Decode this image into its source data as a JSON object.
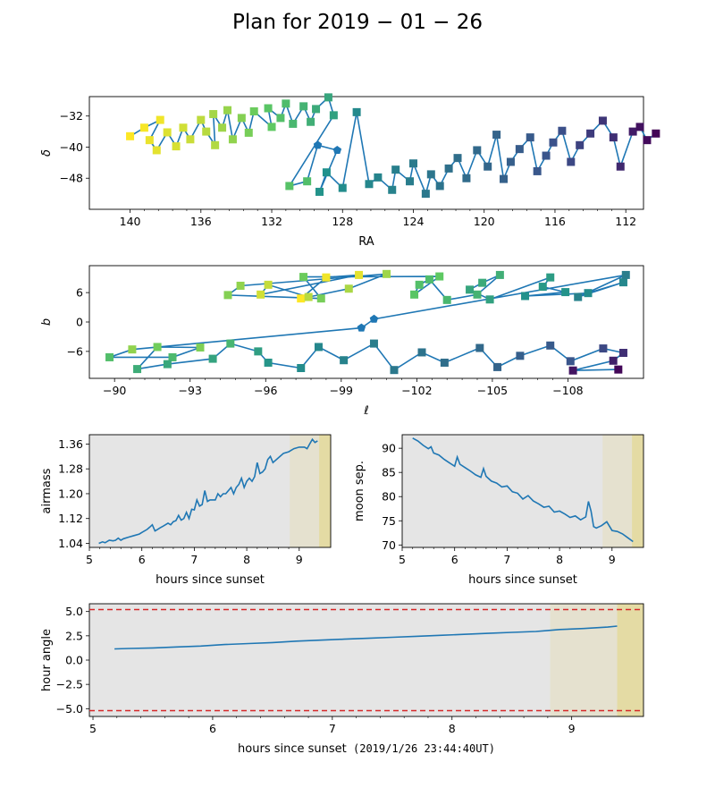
{
  "page": {
    "title": "Plan for 2019 − 01 − 26"
  },
  "colors": {
    "line": "#1f77b4",
    "limit": "#d62728",
    "night_bg": "#e5e5e5",
    "twilight_bg": "#e5e1cf",
    "dawn_bg": "#e4dba4",
    "viridis": [
      "#440154",
      "#3b528b",
      "#21918c",
      "#5ec962",
      "#fde725"
    ]
  },
  "chart_data": [
    {
      "id": "sky",
      "type": "scatter",
      "xlabel": "RA",
      "ylabel": "δ",
      "xlim": [
        142.3,
        111.0
      ],
      "ylim": [
        -56,
        -27
      ],
      "xticks": [
        140,
        136,
        132,
        128,
        124,
        120,
        116,
        112
      ],
      "yticks": [
        -48,
        -40,
        -32
      ],
      "grid": false,
      "points": [
        [
          140.0,
          -37.2,
          "s",
          1.0
        ],
        [
          139.2,
          -35.0,
          "s",
          0.99
        ],
        [
          138.3,
          -33.0,
          "s",
          0.98
        ],
        [
          138.9,
          -38.2,
          "s",
          0.97
        ],
        [
          138.5,
          -40.8,
          "s",
          0.96
        ],
        [
          137.9,
          -36.2,
          "s",
          0.95
        ],
        [
          137.4,
          -39.8,
          "s",
          0.94
        ],
        [
          137.0,
          -35.0,
          "s",
          0.93
        ],
        [
          136.6,
          -38.0,
          "s",
          0.92
        ],
        [
          136.0,
          -33.0,
          "s",
          0.9
        ],
        [
          135.7,
          -36.0,
          "s",
          0.89
        ],
        [
          135.2,
          -39.5,
          "s",
          0.88
        ],
        [
          135.3,
          -31.5,
          "s",
          0.86
        ],
        [
          134.8,
          -35.0,
          "s",
          0.85
        ],
        [
          134.5,
          -30.5,
          "s",
          0.84
        ],
        [
          134.2,
          -38.0,
          "s",
          0.83
        ],
        [
          133.7,
          -32.5,
          "s",
          0.81
        ],
        [
          133.3,
          -36.3,
          "s",
          0.79
        ],
        [
          133.0,
          -30.8,
          "s",
          0.77
        ],
        [
          132.0,
          -34.8,
          "s",
          0.75
        ],
        [
          132.2,
          -30.0,
          "s",
          0.73
        ],
        [
          131.5,
          -32.5,
          "s",
          0.71
        ],
        [
          131.2,
          -28.8,
          "s",
          0.69
        ],
        [
          130.8,
          -34.0,
          "s",
          0.67
        ],
        [
          130.2,
          -29.5,
          "s",
          0.65
        ],
        [
          129.8,
          -33.5,
          "s",
          0.63
        ],
        [
          129.5,
          -30.2,
          "s",
          0.61
        ],
        [
          128.8,
          -27.2,
          "s",
          0.59
        ],
        [
          128.5,
          -31.8,
          "s",
          0.57
        ],
        [
          131.0,
          -50.0,
          "s",
          0.72
        ],
        [
          130.0,
          -48.8,
          "s",
          0.7
        ],
        [
          129.4,
          -39.5,
          "p",
          0.55
        ],
        [
          128.3,
          -40.8,
          "p",
          0.53
        ],
        [
          129.3,
          -51.5,
          "s",
          0.51
        ],
        [
          128.9,
          -46.5,
          "s",
          0.5
        ],
        [
          128.0,
          -50.5,
          "s",
          0.48
        ],
        [
          127.2,
          -31.0,
          "s",
          0.47
        ],
        [
          126.5,
          -49.5,
          "s",
          0.46
        ],
        [
          126.0,
          -47.8,
          "s",
          0.45
        ],
        [
          125.2,
          -51.0,
          "s",
          0.44
        ],
        [
          125.0,
          -45.8,
          "s",
          0.43
        ],
        [
          124.2,
          -48.8,
          "s",
          0.42
        ],
        [
          124.0,
          -44.2,
          "s",
          0.41
        ],
        [
          123.3,
          -52.0,
          "s",
          0.4
        ],
        [
          123.0,
          -47.0,
          "s",
          0.39
        ],
        [
          122.5,
          -50.0,
          "s",
          0.38
        ],
        [
          122.0,
          -45.5,
          "s",
          0.37
        ],
        [
          121.5,
          -42.8,
          "s",
          0.36
        ],
        [
          121.0,
          -48.0,
          "s",
          0.35
        ],
        [
          120.4,
          -40.8,
          "s",
          0.34
        ],
        [
          119.8,
          -45.0,
          "s",
          0.33
        ],
        [
          119.3,
          -36.8,
          "s",
          0.32
        ],
        [
          118.9,
          -48.2,
          "s",
          0.31
        ],
        [
          118.5,
          -43.8,
          "s",
          0.3
        ],
        [
          118.0,
          -40.5,
          "s",
          0.29
        ],
        [
          117.4,
          -37.5,
          "s",
          0.28
        ],
        [
          117.0,
          -46.2,
          "s",
          0.27
        ],
        [
          116.5,
          -42.2,
          "s",
          0.26
        ],
        [
          116.1,
          -38.8,
          "s",
          0.25
        ],
        [
          115.6,
          -35.8,
          "s",
          0.24
        ],
        [
          115.1,
          -43.8,
          "s",
          0.22
        ],
        [
          114.6,
          -39.5,
          "s",
          0.2
        ],
        [
          114.0,
          -36.5,
          "s",
          0.18
        ],
        [
          113.3,
          -33.2,
          "s",
          0.16
        ],
        [
          112.7,
          -37.5,
          "s",
          0.14
        ],
        [
          112.3,
          -45.0,
          "s",
          0.12
        ],
        [
          111.6,
          -36.0,
          "s",
          0.08
        ],
        [
          111.2,
          -34.8,
          "s",
          0.05
        ],
        [
          110.8,
          -38.2,
          "s",
          0.03
        ],
        [
          110.3,
          -36.5,
          "s",
          0.01
        ]
      ]
    },
    {
      "id": "gal",
      "type": "scatter",
      "xlabel": "ℓ",
      "ylabel": "b",
      "xlim": [
        -89.0,
        -111.0
      ],
      "ylim": [
        -11.5,
        11.5
      ],
      "xticks": [
        -90,
        -93,
        -96,
        -99,
        -102,
        -105,
        -108
      ],
      "yticks": [
        -6,
        0,
        6
      ],
      "grid": false,
      "points": [
        [
          -97.4,
          4.8,
          "s",
          1.0
        ],
        [
          -98.4,
          9.1,
          "s",
          0.98
        ],
        [
          -99.7,
          9.6,
          "s",
          0.96
        ],
        [
          -95.8,
          5.6,
          "s",
          0.93
        ],
        [
          -96.1,
          7.6,
          "s",
          0.91
        ],
        [
          -97.7,
          5.1,
          "s",
          0.89
        ],
        [
          -99.3,
          6.8,
          "s",
          0.87
        ],
        [
          -100.8,
          9.8,
          "s",
          0.85
        ],
        [
          -95.0,
          7.4,
          "s",
          0.83
        ],
        [
          -94.5,
          5.5,
          "s",
          0.81
        ],
        [
          -98.2,
          4.8,
          "s",
          0.79
        ],
        [
          -97.5,
          9.2,
          "s",
          0.77
        ],
        [
          -102.9,
          9.3,
          "s",
          0.75
        ],
        [
          -101.9,
          5.6,
          "s",
          0.73
        ],
        [
          -102.1,
          7.6,
          "s",
          0.71
        ],
        [
          -102.5,
          8.7,
          "s",
          0.69
        ],
        [
          -103.2,
          4.5,
          "s",
          0.67
        ],
        [
          -104.4,
          5.6,
          "s",
          0.65
        ],
        [
          -105.3,
          9.6,
          "s",
          0.63
        ],
        [
          -104.6,
          8.0,
          "s",
          0.61
        ],
        [
          -104.1,
          6.6,
          "s",
          0.59
        ],
        [
          -104.9,
          4.6,
          "s",
          0.57
        ],
        [
          -107.3,
          9.1,
          "s",
          0.55
        ],
        [
          -107.0,
          7.2,
          "s",
          0.53
        ],
        [
          -107.9,
          6.1,
          "s",
          0.51
        ],
        [
          -106.3,
          5.3,
          "s",
          0.5
        ],
        [
          -108.8,
          5.9,
          "s",
          0.48
        ],
        [
          -110.2,
          8.1,
          "s",
          0.46
        ],
        [
          -108.4,
          5.1,
          "s",
          0.44
        ],
        [
          -110.3,
          9.6,
          "s",
          0.42
        ],
        [
          -100.3,
          0.6,
          "p",
          0.55
        ],
        [
          -99.8,
          -1.2,
          "p",
          0.54
        ],
        [
          -90.7,
          -5.6,
          "s",
          0.83
        ],
        [
          -89.8,
          -7.2,
          "s",
          0.7
        ],
        [
          -92.3,
          -7.2,
          "s",
          0.68
        ],
        [
          -93.4,
          -5.2,
          "s",
          0.8
        ],
        [
          -91.7,
          -5.1,
          "s",
          0.78
        ],
        [
          -90.9,
          -9.6,
          "s",
          0.62
        ],
        [
          -92.1,
          -8.6,
          "s",
          0.6
        ],
        [
          -93.9,
          -7.5,
          "s",
          0.58
        ],
        [
          -94.6,
          -4.4,
          "s",
          0.66
        ],
        [
          -95.7,
          -6.0,
          "s",
          0.56
        ],
        [
          -96.1,
          -8.3,
          "s",
          0.52
        ],
        [
          -97.4,
          -9.4,
          "s",
          0.48
        ],
        [
          -98.1,
          -5.1,
          "s",
          0.46
        ],
        [
          -99.1,
          -7.8,
          "s",
          0.44
        ],
        [
          -100.3,
          -4.4,
          "s",
          0.42
        ],
        [
          -101.1,
          -9.8,
          "s",
          0.4
        ],
        [
          -102.2,
          -6.2,
          "s",
          0.38
        ],
        [
          -103.1,
          -8.3,
          "s",
          0.36
        ],
        [
          -104.5,
          -5.3,
          "s",
          0.34
        ],
        [
          -105.2,
          -9.2,
          "s",
          0.32
        ],
        [
          -106.1,
          -6.9,
          "s",
          0.3
        ],
        [
          -107.3,
          -4.8,
          "s",
          0.28
        ],
        [
          -108.1,
          -8.0,
          "s",
          0.26
        ],
        [
          -109.4,
          -5.4,
          "s",
          0.22
        ],
        [
          -110.2,
          -6.3,
          "s",
          0.14
        ],
        [
          -109.8,
          -7.9,
          "s",
          0.1
        ],
        [
          -108.2,
          -9.9,
          "s",
          0.06
        ],
        [
          -110.0,
          -9.7,
          "s",
          0.02
        ]
      ]
    },
    {
      "id": "airmass",
      "type": "line",
      "xlabel": "hours since sunset",
      "ylabel": "airmass",
      "xlim": [
        5.0,
        9.6
      ],
      "ylim": [
        1.027,
        1.39
      ],
      "xticks": [
        5,
        6,
        7,
        8,
        9
      ],
      "yticks": [
        1.04,
        1.12,
        1.2,
        1.28,
        1.36
      ],
      "x": [
        5.18,
        5.25,
        5.3,
        5.38,
        5.45,
        5.5,
        5.55,
        5.6,
        5.65,
        5.75,
        5.85,
        5.95,
        6.0,
        6.1,
        6.15,
        6.2,
        6.25,
        6.3,
        6.35,
        6.4,
        6.45,
        6.5,
        6.55,
        6.6,
        6.65,
        6.7,
        6.75,
        6.8,
        6.85,
        6.9,
        6.95,
        7.0,
        7.05,
        7.1,
        7.15,
        7.2,
        7.25,
        7.3,
        7.4,
        7.45,
        7.5,
        7.55,
        7.6,
        7.7,
        7.75,
        7.8,
        7.85,
        7.9,
        7.95,
        8.0,
        8.05,
        8.1,
        8.15,
        8.2,
        8.25,
        8.3,
        8.35,
        8.4,
        8.45,
        8.5,
        8.6,
        8.7,
        8.8,
        8.9,
        9.0,
        9.1,
        9.15,
        9.2,
        9.25,
        9.3,
        9.35
      ],
      "y": [
        1.04,
        1.045,
        1.042,
        1.05,
        1.048,
        1.05,
        1.057,
        1.05,
        1.055,
        1.06,
        1.065,
        1.07,
        1.075,
        1.085,
        1.092,
        1.1,
        1.08,
        1.085,
        1.09,
        1.095,
        1.1,
        1.105,
        1.1,
        1.11,
        1.113,
        1.13,
        1.115,
        1.12,
        1.14,
        1.12,
        1.15,
        1.148,
        1.18,
        1.16,
        1.165,
        1.21,
        1.175,
        1.18,
        1.18,
        1.2,
        1.19,
        1.2,
        1.2,
        1.22,
        1.2,
        1.22,
        1.23,
        1.25,
        1.22,
        1.24,
        1.25,
        1.24,
        1.255,
        1.3,
        1.265,
        1.27,
        1.28,
        1.31,
        1.32,
        1.3,
        1.315,
        1.33,
        1.335,
        1.345,
        1.35,
        1.35,
        1.345,
        1.36,
        1.375,
        1.365,
        1.37
      ]
    },
    {
      "id": "moon",
      "type": "line",
      "xlabel": "hours since sunset",
      "ylabel": "moon sep.",
      "xlim": [
        5.0,
        9.6
      ],
      "ylim": [
        69.5,
        92.8
      ],
      "xticks": [
        5,
        6,
        7,
        8,
        9
      ],
      "yticks": [
        70,
        75,
        80,
        85,
        90
      ],
      "x": [
        5.2,
        5.3,
        5.4,
        5.5,
        5.55,
        5.6,
        5.7,
        5.8,
        5.9,
        6.0,
        6.05,
        6.1,
        6.2,
        6.3,
        6.4,
        6.5,
        6.55,
        6.6,
        6.7,
        6.8,
        6.9,
        7.0,
        7.1,
        7.2,
        7.3,
        7.4,
        7.5,
        7.6,
        7.7,
        7.8,
        7.9,
        8.0,
        8.1,
        8.2,
        8.3,
        8.4,
        8.5,
        8.55,
        8.6,
        8.65,
        8.7,
        8.8,
        8.9,
        9.0,
        9.1,
        9.2,
        9.3,
        9.4
      ],
      "y": [
        92.1,
        91.5,
        90.6,
        89.9,
        90.3,
        89.0,
        88.6,
        87.7,
        87.0,
        86.3,
        88.2,
        86.7,
        86.0,
        85.3,
        84.5,
        84.0,
        85.8,
        84.2,
        83.2,
        82.8,
        82.0,
        82.2,
        81.0,
        80.7,
        79.5,
        80.2,
        79.1,
        78.5,
        77.8,
        78.0,
        76.8,
        77.0,
        76.4,
        75.7,
        76.0,
        75.2,
        75.8,
        79.0,
        77.0,
        73.8,
        73.5,
        74.0,
        74.8,
        73.0,
        72.8,
        72.3,
        71.5,
        70.7
      ]
    },
    {
      "id": "hourangle",
      "type": "line",
      "xlabel": "hours since sunset",
      "ylabel": "hour angle",
      "xlim": [
        4.97,
        9.6
      ],
      "ylim": [
        -5.8,
        5.8
      ],
      "xticks": [
        5,
        6,
        7,
        8,
        9
      ],
      "yticks": [
        -5.0,
        -2.5,
        0.0,
        2.5,
        5.0
      ],
      "limits": [
        5.2,
        -5.2
      ],
      "x": [
        5.18,
        5.3,
        5.5,
        5.7,
        5.9,
        6.1,
        6.3,
        6.5,
        6.7,
        6.9,
        7.1,
        7.3,
        7.5,
        7.7,
        7.9,
        8.1,
        8.3,
        8.5,
        8.7,
        8.8,
        8.9,
        9.1,
        9.3,
        9.38
      ],
      "y": [
        1.15,
        1.2,
        1.25,
        1.35,
        1.45,
        1.6,
        1.7,
        1.8,
        1.95,
        2.05,
        2.15,
        2.25,
        2.35,
        2.45,
        2.55,
        2.65,
        2.75,
        2.85,
        2.95,
        3.05,
        3.15,
        3.25,
        3.4,
        3.5
      ]
    }
  ],
  "bottom_xlabel_time": "(2019/1/26 23:44:40UT)",
  "bands": [
    {
      "from": 8.82,
      "to": 9.38,
      "kind": "twilight_bg"
    },
    {
      "from": 9.38,
      "to": 9.6,
      "kind": "dawn_bg"
    }
  ]
}
